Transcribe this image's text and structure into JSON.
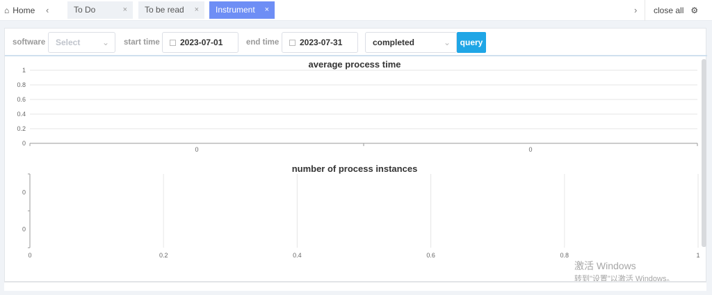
{
  "tabbar": {
    "home": "Home",
    "tabs": [
      {
        "label": "To Do",
        "active": false
      },
      {
        "label": "To be read",
        "active": false
      },
      {
        "label": "Instrument",
        "active": true
      }
    ],
    "close_all": "close all",
    "close_glyph": "×"
  },
  "filters": {
    "software_label": "software",
    "software_placeholder": "Select",
    "start_label": "start time",
    "start_value": "2023-07-01",
    "end_label": "end time",
    "end_value": "2023-07-31",
    "status_value": "completed",
    "query_label": "query"
  },
  "colors": {
    "active_tab": "#6e8ef5",
    "query_button": "#1fa6e6"
  },
  "chart_data": [
    {
      "type": "bar",
      "title": "average process time",
      "categories": [
        "0",
        "0"
      ],
      "values": [
        0,
        0
      ],
      "ylim": [
        0,
        1
      ],
      "yticks": [
        "0",
        "0.2",
        "0.4",
        "0.6",
        "0.8",
        "1"
      ],
      "grid": true
    },
    {
      "type": "bar",
      "orientation": "horizontal",
      "title": "number of process instances",
      "categories": [
        "0",
        "0"
      ],
      "values": [
        0,
        0
      ],
      "xlim": [
        0,
        1
      ],
      "xticks": [
        "0",
        "0.2",
        "0.4",
        "0.6",
        "0.8",
        "1"
      ],
      "grid": true
    }
  ],
  "watermark": {
    "line1": "激活 Windows",
    "line2": "转到\"设置\"以激活 Windows。"
  }
}
